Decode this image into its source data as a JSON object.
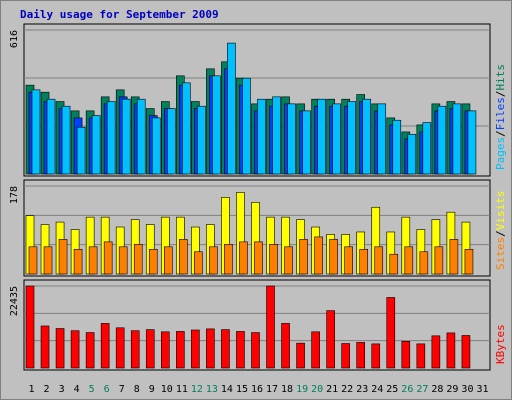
{
  "chart_data": {
    "type": "bar",
    "title": "Daily usage for September 2009",
    "colors": {
      "background": "#c0c0c0",
      "panel": "#c0c0c0",
      "title": "#0000c0",
      "hits": "#00805c",
      "files": "#0040ff",
      "pages": "#00c0ff",
      "visits": "#ffff00",
      "sites": "#ff8000",
      "kbytes": "#ff0000",
      "grid": "#808080",
      "weekend_label": "#008060",
      "weekday_label": "#000000"
    },
    "x": [
      "1",
      "2",
      "3",
      "4",
      "5",
      "6",
      "7",
      "8",
      "9",
      "10",
      "11",
      "12",
      "13",
      "14",
      "15",
      "16",
      "17",
      "18",
      "19",
      "20",
      "21",
      "22",
      "23",
      "24",
      "25",
      "26",
      "27",
      "28",
      "29",
      "30",
      "31"
    ],
    "weekend_days": [
      "5",
      "6",
      "12",
      "13",
      "19",
      "20",
      "26",
      "27"
    ],
    "panels": [
      {
        "key": "hits",
        "tick_max": "616",
        "ymax": 616,
        "series": [
          {
            "name": "Hits",
            "color": "#00805c",
            "values": [
              380,
              350,
              310,
              270,
              270,
              330,
              360,
              330,
              280,
              310,
              420,
              310,
              450,
              480,
              410,
              300,
              320,
              330,
              300,
              320,
              320,
              320,
              340,
              300,
              240,
              180,
              210,
              300,
              310,
              300,
              0
            ]
          },
          {
            "name": "Files",
            "color": "#0040ff",
            "values": [
              350,
              310,
              280,
              240,
              240,
              300,
              330,
              300,
              250,
              280,
              380,
              280,
              420,
              450,
              380,
              270,
              290,
              300,
              270,
              290,
              290,
              290,
              310,
              270,
              210,
              150,
              180,
              270,
              280,
              270,
              0
            ]
          },
          {
            "name": "Pages",
            "color": "#00c0ff",
            "values": [
              360,
              320,
              290,
              200,
              250,
              310,
              320,
              320,
              240,
              280,
              390,
              290,
              420,
              560,
              410,
              320,
              330,
              300,
              270,
              320,
              300,
              310,
              320,
              300,
              230,
              170,
              220,
              290,
              300,
              270,
              0
            ]
          }
        ],
        "side_labels": [
          {
            "text": "Pages",
            "color": "#00c0ff"
          },
          {
            "text": "/",
            "color": "#000000"
          },
          {
            "text": "Files",
            "color": "#0040ff"
          },
          {
            "text": "/",
            "color": "#000000"
          },
          {
            "text": "Hits",
            "color": "#00805c"
          }
        ]
      },
      {
        "key": "visits",
        "tick_max": "178",
        "ymax": 178,
        "series": [
          {
            "name": "Visits",
            "color": "#ffff00",
            "values": [
              118,
              100,
              105,
              90,
              115,
              115,
              95,
              110,
              100,
              115,
              115,
              95,
              100,
              155,
              165,
              145,
              115,
              115,
              110,
              95,
              80,
              80,
              85,
              135,
              85,
              115,
              90,
              110,
              125,
              105,
              0
            ]
          },
          {
            "name": "Sites",
            "color": "#ff8000",
            "values": [
              55,
              55,
              70,
              50,
              55,
              65,
              55,
              60,
              50,
              55,
              70,
              45,
              55,
              60,
              65,
              65,
              60,
              55,
              70,
              75,
              70,
              55,
              50,
              55,
              40,
              55,
              45,
              55,
              70,
              50,
              0
            ]
          }
        ],
        "side_labels": [
          {
            "text": "Sites",
            "color": "#ff8000"
          },
          {
            "text": "/",
            "color": "#000000"
          },
          {
            "text": "Visits",
            "color": "#ffff00"
          }
        ]
      },
      {
        "key": "kbytes",
        "tick_max": "22435",
        "ymax": 22435,
        "series": [
          {
            "name": "KBytes",
            "color": "#ff0000",
            "values": [
              22435,
              11500,
              10800,
              10200,
              9700,
              12200,
              11000,
              10200,
              10500,
              9900,
              10000,
              10400,
              10700,
              10500,
              10000,
              9700,
              22435,
              12200,
              6800,
              9900,
              15700,
              6700,
              7000,
              6600,
              19300,
              7300,
              6600,
              8800,
              9600,
              8900,
              0
            ]
          }
        ],
        "side_labels": [
          {
            "text": "KBytes",
            "color": "#ff0000"
          }
        ]
      }
    ]
  }
}
